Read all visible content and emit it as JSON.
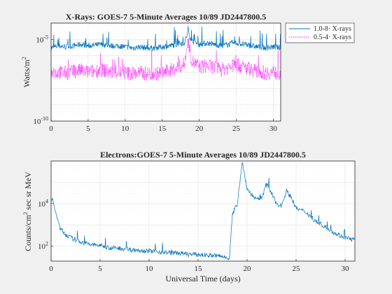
{
  "chart_data": [
    {
      "type": "line",
      "title": "X-Rays: GOES-7 5-Minute Averages 10/89 JD2447800.5",
      "xlabel": "",
      "ylabel": "Watts/m",
      "ylabel_superscript": "2",
      "x_range": [
        0,
        31
      ],
      "y_range": [
        1e-10,
        0.0001
      ],
      "y_scale": "log",
      "x_ticks": [
        "0",
        "5",
        "10",
        "15",
        "20",
        "25",
        "30"
      ],
      "y_ticks": [
        {
          "base": "10",
          "exp": "-10",
          "value": 1e-10
        },
        {
          "base": "10",
          "exp": "-5",
          "value": 1e-05
        }
      ],
      "grid": true,
      "legend_position": "outside top-right",
      "series": [
        {
          "name": "1.0-8· X-rays",
          "color": "#0072bd",
          "style": "solid",
          "x": [
            0,
            1,
            2,
            3,
            4,
            5,
            6,
            7,
            8,
            9,
            10,
            11,
            12,
            13,
            14,
            15,
            16,
            17,
            18,
            18.5,
            19,
            20,
            21,
            22,
            23,
            24,
            25,
            26,
            27,
            28,
            29,
            30,
            31
          ],
          "y": [
            3e-06,
            4e-06,
            3.5e-06,
            4e-06,
            5e-06,
            4e-06,
            4.5e-06,
            5e-06,
            4e-06,
            4e-06,
            3.5e-06,
            3e-06,
            3.5e-06,
            3e-06,
            3e-06,
            3.5e-06,
            4e-06,
            5e-06,
            6e-06,
            3e-05,
            8e-06,
            5e-06,
            6e-06,
            5e-06,
            4e-06,
            5e-06,
            6e-06,
            5e-06,
            4e-06,
            3.5e-06,
            3e-06,
            3.5e-06,
            3e-06
          ]
        },
        {
          "name": "0.5-4· X-rays",
          "color": "#ff00ff",
          "style": "dotted",
          "x": [
            0,
            1,
            2,
            3,
            4,
            5,
            6,
            7,
            8,
            9,
            10,
            11,
            12,
            13,
            14,
            15,
            16,
            17,
            18,
            18.5,
            19,
            20,
            21,
            22,
            23,
            24,
            25,
            26,
            27,
            28,
            29,
            30,
            31
          ],
          "y": [
            8e-08,
            1e-07,
            9e-08,
            1e-07,
            1.3e-07,
            1e-07,
            1.2e-07,
            1.4e-07,
            1e-07,
            1e-07,
            9e-08,
            8e-08,
            9e-08,
            8e-08,
            8e-08,
            9e-08,
            1.2e-07,
            1.8e-07,
            3e-07,
            8e-06,
            5e-07,
            2e-07,
            2.5e-07,
            2e-07,
            1.5e-07,
            2e-07,
            3e-07,
            2e-07,
            1.5e-07,
            1e-07,
            9e-08,
            1e-07,
            8e-08
          ]
        }
      ]
    },
    {
      "type": "line",
      "title": "Electrons:GOES-7 5-Minute Averages 10/89 JD2447800.5",
      "xlabel": "Universal Time (days)",
      "ylabel_prefix": "Counts/cm",
      "ylabel_superscript": "2",
      "ylabel_suffix": " sec sr MeV",
      "x_range": [
        0,
        31
      ],
      "y_range": [
        20,
        1000000
      ],
      "y_scale": "log",
      "x_ticks": [
        "0",
        "5",
        "10",
        "15",
        "20",
        "25",
        "30"
      ],
      "y_ticks": [
        {
          "base": "10",
          "exp": "2",
          "value": 100
        },
        {
          "base": "10",
          "exp": "4",
          "value": 10000
        }
      ],
      "grid": true,
      "series": [
        {
          "name": "",
          "color": "#0072bd",
          "style": "solid",
          "x": [
            0,
            0.2,
            0.5,
            1,
            1.5,
            2,
            3,
            4,
            5,
            6,
            7,
            8,
            9,
            10,
            11,
            12,
            13,
            14,
            15,
            16,
            17,
            18,
            18.2,
            18.5,
            19,
            19.5,
            20,
            20.5,
            21,
            21.5,
            22,
            22.5,
            23,
            23.5,
            24,
            24.5,
            25,
            26,
            27,
            28,
            29,
            30,
            31
          ],
          "y": [
            12000,
            15000,
            3000,
            600,
            350,
            250,
            160,
            120,
            110,
            85,
            80,
            70,
            65,
            60,
            55,
            50,
            48,
            42,
            40,
            38,
            35,
            30,
            28,
            3000,
            10000,
            900000,
            50000,
            25000,
            15000,
            20000,
            80000,
            30000,
            10000,
            8000,
            40000,
            20000,
            6000,
            4000,
            1500,
            800,
            400,
            250,
            200
          ]
        }
      ]
    }
  ]
}
